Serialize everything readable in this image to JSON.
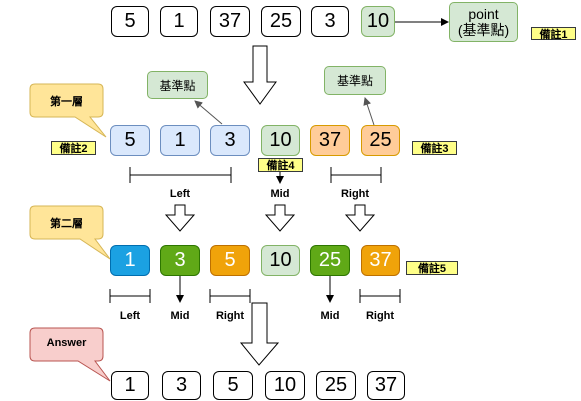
{
  "rows": {
    "top": [
      "5",
      "1",
      "37",
      "25",
      "3",
      "10"
    ],
    "level1": [
      "5",
      "1",
      "3",
      "10",
      "37",
      "25"
    ],
    "level2": [
      "1",
      "3",
      "5",
      "10",
      "25",
      "37"
    ],
    "answer": [
      "1",
      "3",
      "5",
      "10",
      "25",
      "37"
    ]
  },
  "point_label": "point\n(基準點)",
  "pivot_label": "基準點",
  "notes": {
    "n1": "備註1",
    "n2": "備註2",
    "n3": "備註3",
    "n4": "備註4",
    "n5": "備註5"
  },
  "callouts": {
    "level1": "第一層",
    "level2": "第二層",
    "answer": "Answer"
  },
  "partition_labels": {
    "left": "Left",
    "mid": "Mid",
    "right": "Right"
  },
  "colors": {
    "blue": "#dae8fc",
    "green": "#d5e8d4",
    "orange": "#ffcc99",
    "dark_blue": "#1ba1e2",
    "dark_green": "#60a917",
    "dark_orange": "#f0a30a",
    "note": "#ffff88",
    "callout_yellow": "#ffe599",
    "callout_red": "#f8cecc"
  }
}
